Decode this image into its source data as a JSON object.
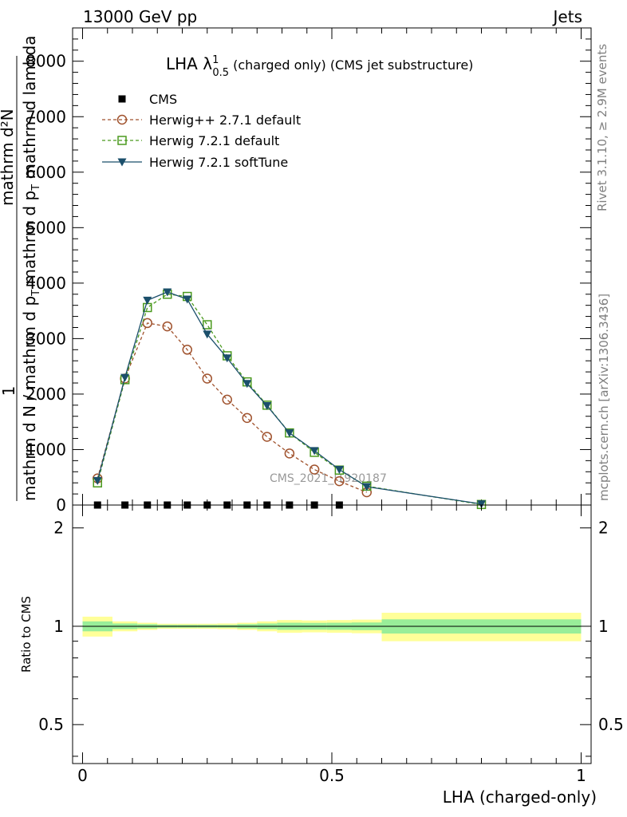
{
  "header": {
    "left": "13000 GeV pp",
    "right": "Jets"
  },
  "side_notes": {
    "top": "Rivet 3.1.10, ≥ 2.9M events",
    "bottom": "mcplots.cern.ch [arXiv:1306.3436]"
  },
  "watermark": "CMS_2021_I1920187",
  "chart_data": [
    {
      "type": "line",
      "title": "LHA λ",
      "title_sup": "1",
      "title_sub": "0.5",
      "title_suffix": " (charged only) (CMS jet substructure)",
      "ylabel_num": "1",
      "ylabel_den": "mathrm d N / mathrm d p",
      "ylabel_den_sub": "T",
      "ylabel_den2": " mathrm d p",
      "ylabel_den2_sub": "T",
      "ylabel_den3": " mathrm d lambda",
      "ylabel_top": "mathrm d²N",
      "ylim": [
        0,
        8600
      ],
      "yticks": [
        0,
        1000,
        2000,
        3000,
        4000,
        5000,
        6000,
        7000,
        8000
      ],
      "ytick_labels": [
        "0",
        "1000",
        "2000",
        "3000",
        "4000",
        "5000",
        "6000",
        "7000",
        "8000"
      ],
      "xlim": [
        -0.02,
        1.02
      ],
      "legend_position": "top-left",
      "series": [
        {
          "name": "CMS",
          "style": "cms",
          "color": "#000000",
          "x": [
            0.03,
            0.085,
            0.13,
            0.17,
            0.21,
            0.25,
            0.29,
            0.33,
            0.37,
            0.415,
            0.465,
            0.515
          ],
          "values": [
            0,
            0,
            0,
            0,
            0,
            0,
            0,
            0,
            0,
            0,
            0,
            0
          ]
        },
        {
          "name": "Herwig++ 2.7.1 default",
          "style": "circle",
          "color": "#a0522d",
          "x": [
            0.03,
            0.085,
            0.13,
            0.17,
            0.21,
            0.25,
            0.29,
            0.33,
            0.37,
            0.415,
            0.465,
            0.515,
            0.57
          ],
          "values": [
            480,
            2280,
            3280,
            3220,
            2800,
            2280,
            1900,
            1570,
            1230,
            930,
            640,
            430,
            230
          ]
        },
        {
          "name": "Herwig 7.2.1 default",
          "style": "square",
          "color": "#4b9a1e",
          "x": [
            0.03,
            0.085,
            0.13,
            0.17,
            0.21,
            0.25,
            0.29,
            0.33,
            0.37,
            0.415,
            0.465,
            0.515,
            0.57,
            0.8
          ],
          "values": [
            400,
            2260,
            3560,
            3800,
            3760,
            3250,
            2690,
            2220,
            1800,
            1300,
            950,
            630,
            340,
            10
          ]
        },
        {
          "name": "Herwig 7.2.1 softTune",
          "style": "triangle",
          "color": "#1b4f6b",
          "x": [
            0.03,
            0.085,
            0.13,
            0.17,
            0.21,
            0.25,
            0.29,
            0.33,
            0.37,
            0.415,
            0.465,
            0.515,
            0.57,
            0.8
          ],
          "values": [
            440,
            2300,
            3690,
            3840,
            3710,
            3080,
            2650,
            2190,
            1790,
            1300,
            980,
            640,
            330,
            20
          ]
        }
      ]
    },
    {
      "type": "area",
      "ylabel": "Ratio to CMS",
      "ylim": [
        0.38,
        2.35
      ],
      "log_y": true,
      "yticks": [
        0.5,
        1,
        2
      ],
      "ytick_labels": [
        "0.5",
        "1",
        "2"
      ],
      "xlim": [
        -0.02,
        1.02
      ],
      "xticks": [
        0,
        0.5,
        1
      ],
      "xtick_labels": [
        "0",
        "0.5",
        "1"
      ],
      "xlabel": "LHA (charged-only)",
      "band_colors": {
        "outer": "#ffff99",
        "inner": "#99ee99"
      },
      "bins": [
        {
          "x0": 0.0,
          "x1": 0.06,
          "outer": [
            0.93,
            1.07
          ],
          "inner": [
            0.965,
            1.035
          ]
        },
        {
          "x0": 0.06,
          "x1": 0.11,
          "outer": [
            0.965,
            1.035
          ],
          "inner": [
            0.98,
            1.02
          ]
        },
        {
          "x0": 0.11,
          "x1": 0.15,
          "outer": [
            0.975,
            1.025
          ],
          "inner": [
            0.985,
            1.015
          ]
        },
        {
          "x0": 0.15,
          "x1": 0.19,
          "outer": [
            0.982,
            1.018
          ],
          "inner": [
            0.99,
            1.01
          ]
        },
        {
          "x0": 0.19,
          "x1": 0.23,
          "outer": [
            0.982,
            1.018
          ],
          "inner": [
            0.99,
            1.01
          ]
        },
        {
          "x0": 0.23,
          "x1": 0.27,
          "outer": [
            0.982,
            1.018
          ],
          "inner": [
            0.99,
            1.01
          ]
        },
        {
          "x0": 0.27,
          "x1": 0.31,
          "outer": [
            0.98,
            1.02
          ],
          "inner": [
            0.99,
            1.01
          ]
        },
        {
          "x0": 0.31,
          "x1": 0.35,
          "outer": [
            0.975,
            1.025
          ],
          "inner": [
            0.985,
            1.015
          ]
        },
        {
          "x0": 0.35,
          "x1": 0.39,
          "outer": [
            0.965,
            1.035
          ],
          "inner": [
            0.98,
            1.02
          ]
        },
        {
          "x0": 0.39,
          "x1": 0.44,
          "outer": [
            0.955,
            1.045
          ],
          "inner": [
            0.975,
            1.025
          ]
        },
        {
          "x0": 0.44,
          "x1": 0.49,
          "outer": [
            0.958,
            1.042
          ],
          "inner": [
            0.976,
            1.024
          ]
        },
        {
          "x0": 0.49,
          "x1": 0.54,
          "outer": [
            0.955,
            1.045
          ],
          "inner": [
            0.975,
            1.025
          ]
        },
        {
          "x0": 0.54,
          "x1": 0.6,
          "outer": [
            0.952,
            1.048
          ],
          "inner": [
            0.973,
            1.027
          ]
        },
        {
          "x0": 0.6,
          "x1": 1.0,
          "outer": [
            0.9,
            1.1
          ],
          "inner": [
            0.95,
            1.05
          ]
        }
      ],
      "reference": 1
    }
  ]
}
